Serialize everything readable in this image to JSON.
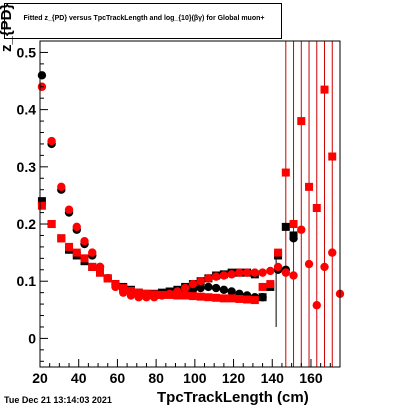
{
  "title": "Fitted  z_{PD}  versus TpcTrackLength and log_{10}(βγ) for Global muon+",
  "timestamp": "Tue Dec 21 13:14:03 2021",
  "colors": {
    "black_series": "#000000",
    "red_series": "#ff0000",
    "axes": "#000000",
    "vlines": "#cc0000"
  },
  "chart_data": {
    "type": "scatter",
    "title": "Fitted  z_{PD}  versus TpcTrackLength and log_{10}(βγ) for Global muon+",
    "xlabel": "TpcTrackLength (cm)",
    "ylabel": "z_{PD}",
    "xlim": [
      20,
      175
    ],
    "ylim": [
      -0.05,
      0.52
    ],
    "x_ticks": [
      20,
      40,
      60,
      80,
      100,
      120,
      140,
      160
    ],
    "y_ticks": [
      0,
      0.1,
      0.2,
      0.3,
      0.4,
      0.5
    ],
    "x_tick_labels": [
      "20",
      "40",
      "60",
      "80",
      "100",
      "120",
      "140",
      "160"
    ],
    "y_tick_labels": [
      "0",
      "0.1",
      "0.2",
      "0.3",
      "0.4",
      "0.5"
    ],
    "grid": false,
    "series": [
      {
        "marker": "circle",
        "color": "#000000",
        "points": [
          [
            21,
            0.46
          ],
          [
            26,
            0.34
          ],
          [
            31,
            0.26
          ],
          [
            35,
            0.22
          ],
          [
            39,
            0.19
          ],
          [
            43,
            0.165
          ],
          [
            47,
            0.145
          ],
          [
            51,
            0.125
          ],
          [
            55,
            0.105
          ],
          [
            59,
            0.095
          ],
          [
            63,
            0.085
          ],
          [
            67,
            0.08
          ],
          [
            71,
            0.078
          ],
          [
            75,
            0.075
          ],
          [
            79,
            0.075
          ],
          [
            83,
            0.076
          ],
          [
            87,
            0.078
          ],
          [
            91,
            0.08
          ],
          [
            95,
            0.082
          ],
          [
            99,
            0.085
          ],
          [
            103,
            0.088
          ],
          [
            107,
            0.09
          ],
          [
            111,
            0.088
          ],
          [
            115,
            0.085
          ],
          [
            119,
            0.082
          ],
          [
            123,
            0.078
          ],
          [
            127,
            0.075
          ],
          [
            131,
            0.072
          ],
          [
            135,
            0.072
          ],
          [
            143,
            0.12
          ],
          [
            147,
            0.12
          ],
          [
            151,
            0.175
          ]
        ]
      },
      {
        "marker": "square",
        "color": "#000000",
        "points": [
          [
            21,
            0.24
          ],
          [
            26,
            0.2
          ],
          [
            31,
            0.175
          ],
          [
            35,
            0.155
          ],
          [
            39,
            0.145
          ],
          [
            43,
            0.135
          ],
          [
            47,
            0.125
          ],
          [
            51,
            0.115
          ],
          [
            55,
            0.105
          ],
          [
            59,
            0.095
          ],
          [
            63,
            0.09
          ],
          [
            67,
            0.085
          ],
          [
            71,
            0.08
          ],
          [
            75,
            0.078
          ],
          [
            79,
            0.078
          ],
          [
            83,
            0.08
          ],
          [
            87,
            0.082
          ],
          [
            91,
            0.085
          ],
          [
            95,
            0.09
          ],
          [
            99,
            0.095
          ],
          [
            103,
            0.1
          ],
          [
            107,
            0.105
          ],
          [
            111,
            0.11
          ],
          [
            115,
            0.112
          ],
          [
            119,
            0.115
          ],
          [
            123,
            0.115
          ],
          [
            127,
            0.115
          ],
          [
            131,
            0.112
          ],
          [
            135,
            0.072
          ],
          [
            139,
            0.09
          ],
          [
            143,
            0.145
          ],
          [
            147,
            0.195
          ],
          [
            151,
            0.18
          ]
        ]
      },
      {
        "marker": "circle",
        "color": "#ff0000",
        "points": [
          [
            21,
            0.44
          ],
          [
            26,
            0.345
          ],
          [
            31,
            0.265
          ],
          [
            35,
            0.225
          ],
          [
            39,
            0.195
          ],
          [
            43,
            0.17
          ],
          [
            47,
            0.15
          ],
          [
            51,
            0.125
          ],
          [
            55,
            0.105
          ],
          [
            59,
            0.09
          ],
          [
            63,
            0.08
          ],
          [
            67,
            0.075
          ],
          [
            71,
            0.072
          ],
          [
            75,
            0.072
          ],
          [
            79,
            0.072
          ],
          [
            83,
            0.075
          ],
          [
            87,
            0.078
          ],
          [
            91,
            0.082
          ],
          [
            95,
            0.088
          ],
          [
            99,
            0.095
          ],
          [
            103,
            0.1
          ],
          [
            107,
            0.105
          ],
          [
            111,
            0.108
          ],
          [
            115,
            0.11
          ],
          [
            119,
            0.112
          ],
          [
            123,
            0.115
          ],
          [
            127,
            0.115
          ],
          [
            131,
            0.115
          ],
          [
            135,
            0.115
          ],
          [
            139,
            0.118
          ],
          [
            143,
            0.125
          ],
          [
            147,
            0.115
          ],
          [
            151,
            0.11
          ],
          [
            155,
            0.19
          ],
          [
            159,
            0.13
          ],
          [
            163,
            0.058
          ],
          [
            167,
            0.125
          ],
          [
            171,
            0.15
          ],
          [
            175,
            0.078
          ]
        ]
      },
      {
        "marker": "square",
        "color": "#ff0000",
        "points": [
          [
            21,
            0.232
          ],
          [
            26,
            0.2
          ],
          [
            31,
            0.175
          ],
          [
            35,
            0.16
          ],
          [
            39,
            0.15
          ],
          [
            43,
            0.14
          ],
          [
            47,
            0.125
          ],
          [
            51,
            0.115
          ],
          [
            55,
            0.105
          ],
          [
            59,
            0.095
          ],
          [
            63,
            0.088
          ],
          [
            67,
            0.083
          ],
          [
            71,
            0.08
          ],
          [
            75,
            0.078
          ],
          [
            79,
            0.077
          ],
          [
            83,
            0.076
          ],
          [
            87,
            0.076
          ],
          [
            91,
            0.075
          ],
          [
            95,
            0.075
          ],
          [
            99,
            0.074
          ],
          [
            103,
            0.073
          ],
          [
            107,
            0.072
          ],
          [
            111,
            0.071
          ],
          [
            115,
            0.07
          ],
          [
            119,
            0.07
          ],
          [
            123,
            0.069
          ],
          [
            127,
            0.068
          ],
          [
            131,
            0.067
          ],
          [
            135,
            0.09
          ],
          [
            139,
            0.095
          ],
          [
            143,
            0.15
          ],
          [
            147,
            0.29
          ],
          [
            151,
            0.2
          ],
          [
            155,
            0.38
          ],
          [
            159,
            0.265
          ],
          [
            163,
            0.228
          ],
          [
            167,
            0.435
          ],
          [
            171,
            0.318
          ]
        ]
      }
    ],
    "vertical_lines_x": [
      147,
      151,
      155,
      159,
      163,
      167,
      171,
      175
    ]
  }
}
